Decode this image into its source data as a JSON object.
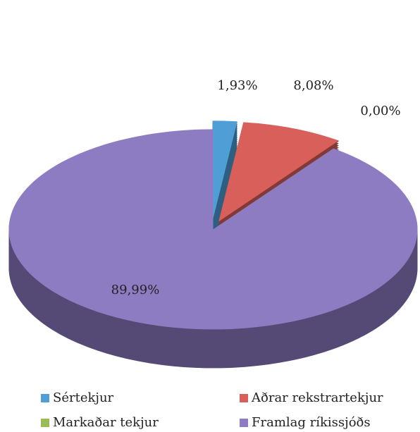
{
  "chart_data": {
    "type": "pie",
    "categories": [
      "Sértekjur",
      "Aðrar rekstrartekjur",
      "Markaðar tekjur",
      "Framlag ríkissjóðs"
    ],
    "values": [
      1.93,
      8.08,
      0.0,
      89.99
    ],
    "value_labels": [
      "1,93%",
      "8,08%",
      "0,00%",
      "89,99%"
    ],
    "colors": [
      "#4f9fd6",
      "#d9605a",
      "#9bbb59",
      "#8e7cc3"
    ]
  }
}
